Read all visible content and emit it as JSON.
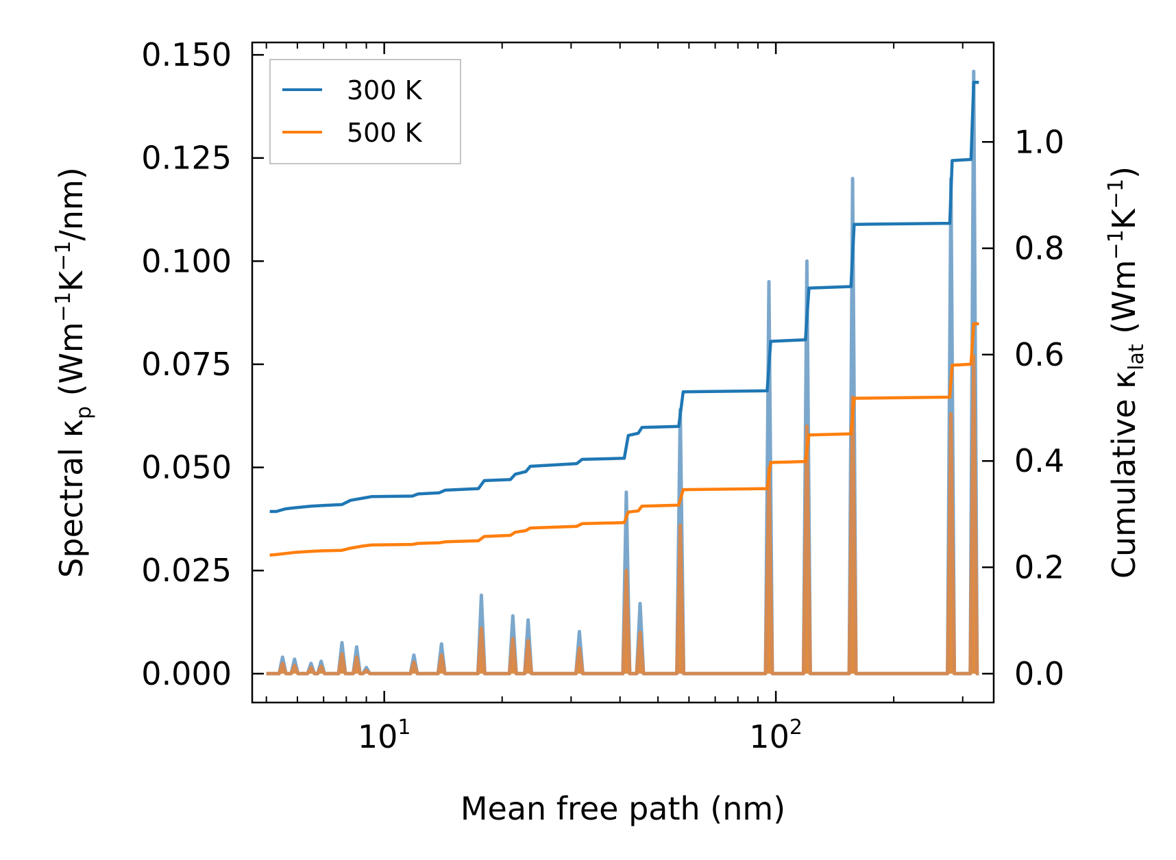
{
  "chart_data": {
    "type": "line",
    "x_scale": "log",
    "xlim": [
      4.6,
      360
    ],
    "ylim_left": [
      -0.007,
      0.153
    ],
    "ylim_right": [
      -0.0543,
      1.1871
    ],
    "xlabel": "Mean free path (nm)",
    "ylabel_left": {
      "prefix": "Spectral κ",
      "sub": "p",
      "unit_a": " (Wm",
      "sup_a": "−1",
      "unit_b": "K",
      "sup_b": "−1",
      "unit_c": "/nm)"
    },
    "ylabel_right": {
      "prefix": "Cumulative κ",
      "sub": "lat",
      "unit_a": " (Wm",
      "sup_a": "−1",
      "unit_b": "K",
      "sup_b": "−1",
      "unit_c": ")"
    },
    "x_ticks": [
      {
        "value": 10,
        "base": "10",
        "exp": "1"
      },
      {
        "value": 100,
        "base": "10",
        "exp": "2"
      }
    ],
    "y_ticks_left": [
      "0.000",
      "0.025",
      "0.050",
      "0.075",
      "0.100",
      "0.125",
      "0.150"
    ],
    "y_ticks_right": [
      "0.0",
      "0.2",
      "0.4",
      "0.6",
      "0.8",
      "1.0"
    ],
    "legend": {
      "position": "top-left",
      "entries": [
        {
          "label": "300 K",
          "color": "#1f77b4"
        },
        {
          "label": "500 K",
          "color": "#ff7f0e"
        }
      ]
    },
    "spectral_series": [
      {
        "name": "300 K",
        "color": "#1f77b4",
        "peaks": [
          [
            5.5,
            0.004
          ],
          [
            5.9,
            0.0035
          ],
          [
            6.5,
            0.0025
          ],
          [
            6.9,
            0.003
          ],
          [
            7.8,
            0.0075
          ],
          [
            8.5,
            0.0065
          ],
          [
            9.0,
            0.0015
          ],
          [
            11.9,
            0.0045
          ],
          [
            14.0,
            0.0072
          ],
          [
            17.7,
            0.019
          ],
          [
            21.3,
            0.014
          ],
          [
            23.3,
            0.013
          ],
          [
            31.5,
            0.0102
          ],
          [
            41.5,
            0.044
          ],
          [
            45.0,
            0.017
          ],
          [
            57.0,
            0.064
          ],
          [
            96.0,
            0.095
          ],
          [
            120.0,
            0.1
          ],
          [
            157.0,
            0.12
          ],
          [
            280.0,
            0.12
          ],
          [
            320.0,
            0.146
          ]
        ]
      },
      {
        "name": "500 K",
        "color": "#ff7f0e",
        "peaks": [
          [
            5.5,
            0.0025
          ],
          [
            5.9,
            0.002
          ],
          [
            6.5,
            0.0015
          ],
          [
            6.9,
            0.0018
          ],
          [
            7.8,
            0.0048
          ],
          [
            8.5,
            0.004
          ],
          [
            9.0,
            0.0008
          ],
          [
            11.9,
            0.0028
          ],
          [
            14.0,
            0.0045
          ],
          [
            17.7,
            0.011
          ],
          [
            21.3,
            0.0085
          ],
          [
            23.3,
            0.008
          ],
          [
            31.5,
            0.0062
          ],
          [
            41.5,
            0.025
          ],
          [
            45.0,
            0.01
          ],
          [
            57.0,
            0.036
          ],
          [
            96.0,
            0.05
          ],
          [
            120.0,
            0.06
          ],
          [
            157.0,
            0.067
          ],
          [
            280.0,
            0.063
          ],
          [
            320.0,
            0.077
          ]
        ]
      }
    ],
    "cumulative_series": [
      {
        "name": "300 K",
        "color": "#1f77b4",
        "points": [
          [
            5.1,
            0.305
          ],
          [
            5.3,
            0.305
          ],
          [
            5.6,
            0.31
          ],
          [
            5.9,
            0.312
          ],
          [
            6.5,
            0.315
          ],
          [
            6.9,
            0.316
          ],
          [
            7.8,
            0.318
          ],
          [
            8.2,
            0.326
          ],
          [
            8.8,
            0.33
          ],
          [
            9.3,
            0.333
          ],
          [
            11.8,
            0.334
          ],
          [
            12.2,
            0.338
          ],
          [
            13.8,
            0.34
          ],
          [
            14.3,
            0.345
          ],
          [
            17.4,
            0.348
          ],
          [
            18.0,
            0.363
          ],
          [
            21.0,
            0.365
          ],
          [
            21.6,
            0.375
          ],
          [
            23.0,
            0.38
          ],
          [
            23.6,
            0.39
          ],
          [
            31.0,
            0.395
          ],
          [
            32.0,
            0.403
          ],
          [
            41.0,
            0.405
          ],
          [
            42.0,
            0.448
          ],
          [
            44.5,
            0.452
          ],
          [
            45.5,
            0.463
          ],
          [
            56.5,
            0.465
          ],
          [
            58.0,
            0.53
          ],
          [
            95.0,
            0.532
          ],
          [
            97.0,
            0.625
          ],
          [
            119.0,
            0.628
          ],
          [
            121.5,
            0.725
          ],
          [
            155.5,
            0.728
          ],
          [
            158.5,
            0.845
          ],
          [
            278.0,
            0.847
          ],
          [
            282.0,
            0.965
          ],
          [
            315.0,
            0.967
          ],
          [
            320.0,
            1.112
          ],
          [
            330.0,
            1.112
          ]
        ]
      },
      {
        "name": "500 K",
        "color": "#ff7f0e",
        "points": [
          [
            5.1,
            0.223
          ],
          [
            5.3,
            0.224
          ],
          [
            5.6,
            0.226
          ],
          [
            5.9,
            0.228
          ],
          [
            6.5,
            0.23
          ],
          [
            6.9,
            0.231
          ],
          [
            7.8,
            0.232
          ],
          [
            8.2,
            0.236
          ],
          [
            8.8,
            0.24
          ],
          [
            9.3,
            0.242
          ],
          [
            11.8,
            0.243
          ],
          [
            12.2,
            0.245
          ],
          [
            13.8,
            0.246
          ],
          [
            14.3,
            0.248
          ],
          [
            17.4,
            0.25
          ],
          [
            18.0,
            0.258
          ],
          [
            21.0,
            0.26
          ],
          [
            21.6,
            0.266
          ],
          [
            23.0,
            0.269
          ],
          [
            23.6,
            0.274
          ],
          [
            31.0,
            0.277
          ],
          [
            32.0,
            0.282
          ],
          [
            41.0,
            0.284
          ],
          [
            42.0,
            0.304
          ],
          [
            44.5,
            0.306
          ],
          [
            45.5,
            0.315
          ],
          [
            56.5,
            0.317
          ],
          [
            58.0,
            0.346
          ],
          [
            95.0,
            0.348
          ],
          [
            97.0,
            0.397
          ],
          [
            119.0,
            0.399
          ],
          [
            121.5,
            0.449
          ],
          [
            155.5,
            0.451
          ],
          [
            158.5,
            0.518
          ],
          [
            278.0,
            0.52
          ],
          [
            282.0,
            0.58
          ],
          [
            315.0,
            0.582
          ],
          [
            320.0,
            0.658
          ],
          [
            330.0,
            0.658
          ]
        ]
      }
    ]
  }
}
